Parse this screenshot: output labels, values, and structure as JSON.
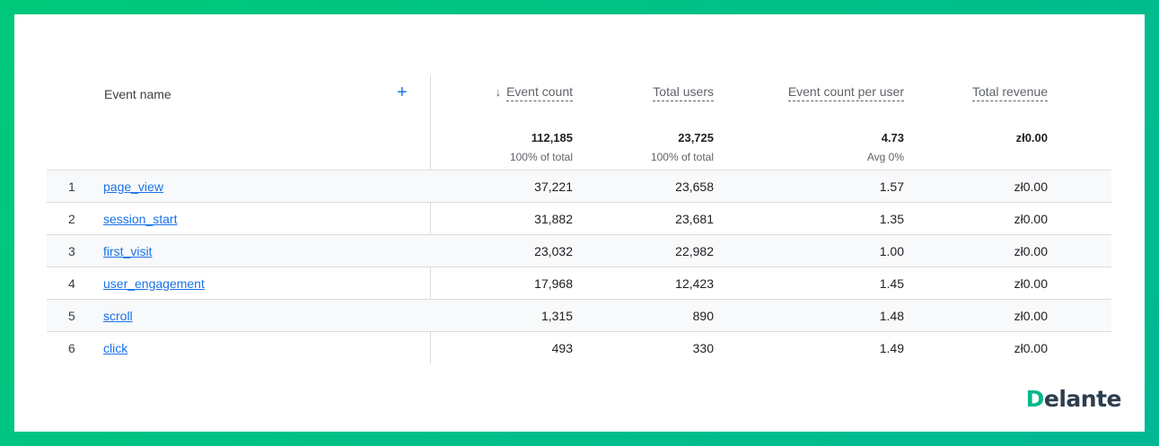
{
  "table": {
    "headers": {
      "event_name": "Event name",
      "event_count": "Event count",
      "total_users": "Total users",
      "event_count_per_user": "Event count per user",
      "total_revenue": "Total revenue"
    },
    "sort_icon": "arrow-down-icon",
    "add_icon": "+",
    "totals": {
      "event_count": "112,185",
      "event_count_sub": "100% of total",
      "total_users": "23,725",
      "total_users_sub": "100% of total",
      "event_count_per_user": "4.73",
      "event_count_per_user_sub": "Avg 0%",
      "total_revenue": "zł0.00"
    },
    "rows": [
      {
        "index": "1",
        "name": "page_view",
        "event_count": "37,221",
        "total_users": "23,658",
        "per_user": "1.57",
        "revenue": "zł0.00"
      },
      {
        "index": "2",
        "name": "session_start",
        "event_count": "31,882",
        "total_users": "23,681",
        "per_user": "1.35",
        "revenue": "zł0.00"
      },
      {
        "index": "3",
        "name": "first_visit",
        "event_count": "23,032",
        "total_users": "22,982",
        "per_user": "1.00",
        "revenue": "zł0.00"
      },
      {
        "index": "4",
        "name": "user_engagement",
        "event_count": "17,968",
        "total_users": "12,423",
        "per_user": "1.45",
        "revenue": "zł0.00"
      },
      {
        "index": "5",
        "name": "scroll",
        "event_count": "1,315",
        "total_users": "890",
        "per_user": "1.48",
        "revenue": "zł0.00"
      },
      {
        "index": "6",
        "name": "click",
        "event_count": "493",
        "total_users": "330",
        "per_user": "1.49",
        "revenue": "zł0.00"
      }
    ]
  },
  "logo": {
    "text": "Delante",
    "first_letter": "D",
    "rest": "elante"
  },
  "colors": {
    "frame_green": "#00c87a",
    "link_blue": "#1a73e8",
    "logo_dark": "#2d3e4e",
    "logo_green": "#00b88a"
  }
}
